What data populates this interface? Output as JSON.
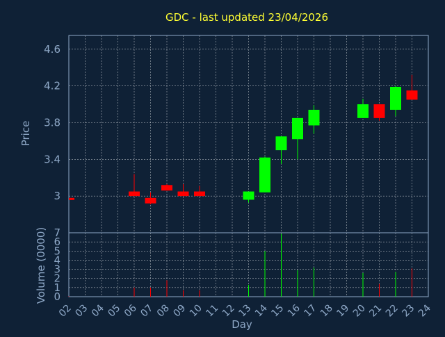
{
  "title": "GDC - last updated 23/04/2026",
  "colors": {
    "background": "#0f2136",
    "up": "#00ff00",
    "down": "#ff0000",
    "title": "#ffff33",
    "axis": "#8fa9c8"
  },
  "chart_data": [
    {
      "type": "candlestick",
      "title": "GDC - last updated 23/04/2026",
      "ylabel": "Price",
      "ylim": [
        2.6,
        4.75
      ],
      "yticks": [
        "3",
        "3.4",
        "3.8",
        "4.2",
        "4.6"
      ],
      "grid": true,
      "candles": [
        {
          "day": "02",
          "open": 2.98,
          "high": 2.98,
          "low": 2.98,
          "close": 2.97
        },
        {
          "day": "06",
          "open": 3.05,
          "high": 3.24,
          "low": 3.0,
          "close": 3.0
        },
        {
          "day": "07",
          "open": 2.98,
          "high": 3.04,
          "low": 2.91,
          "close": 2.92
        },
        {
          "day": "08",
          "open": 3.12,
          "high": 3.13,
          "low": 3.06,
          "close": 3.06
        },
        {
          "day": "09",
          "open": 3.05,
          "high": 3.13,
          "low": 3.0,
          "close": 3.0
        },
        {
          "day": "10",
          "open": 3.05,
          "high": 3.11,
          "low": 3.0,
          "close": 3.0
        },
        {
          "day": "13",
          "open": 2.96,
          "high": 3.05,
          "low": 2.93,
          "close": 3.05
        },
        {
          "day": "14",
          "open": 3.04,
          "high": 3.43,
          "low": 3.04,
          "close": 3.42
        },
        {
          "day": "15",
          "open": 3.5,
          "high": 3.65,
          "low": 3.35,
          "close": 3.65
        },
        {
          "day": "16",
          "open": 3.62,
          "high": 3.85,
          "low": 3.4,
          "close": 3.85
        },
        {
          "day": "17",
          "open": 3.77,
          "high": 3.99,
          "low": 3.68,
          "close": 3.94
        },
        {
          "day": "20",
          "open": 3.85,
          "high": 4.06,
          "low": 3.85,
          "close": 4.0
        },
        {
          "day": "21",
          "open": 4.0,
          "high": 4.0,
          "low": 3.82,
          "close": 3.85
        },
        {
          "day": "22",
          "open": 3.94,
          "high": 4.2,
          "low": 3.87,
          "close": 4.19
        },
        {
          "day": "23",
          "open": 4.15,
          "high": 4.32,
          "low": 4.05,
          "close": 4.05
        }
      ]
    },
    {
      "type": "bar",
      "ylabel": "Volume (0000)",
      "xlabel": "Day",
      "ylim": [
        0,
        7
      ],
      "yticks": [
        "0",
        "1",
        "2",
        "3",
        "4",
        "5",
        "6",
        "7"
      ],
      "grid": true,
      "categories": [
        "02",
        "03",
        "04",
        "05",
        "06",
        "07",
        "08",
        "09",
        "10",
        "11",
        "12",
        "13",
        "14",
        "15",
        "16",
        "17",
        "18",
        "19",
        "20",
        "21",
        "22",
        "23",
        "24"
      ],
      "values": [
        0.05,
        0,
        0,
        0,
        1.0,
        1.0,
        1.8,
        0.7,
        0.7,
        0,
        0,
        1.3,
        5.0,
        6.9,
        2.9,
        3.2,
        0,
        0,
        2.6,
        1.4,
        2.7,
        3.1,
        0
      ],
      "directions": [
        "down",
        "",
        "",
        "",
        "down",
        "down",
        "down",
        "down",
        "down",
        "",
        "",
        "up",
        "up",
        "up",
        "up",
        "up",
        "",
        "",
        "up",
        "down",
        "up",
        "down",
        ""
      ]
    }
  ]
}
